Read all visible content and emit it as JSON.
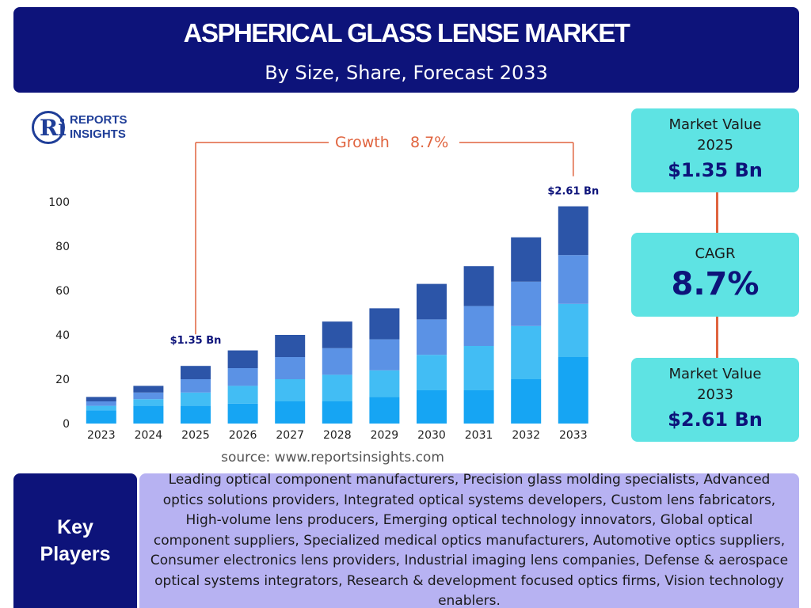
{
  "header": {
    "title": "ASPHERICAL GLASS LENSE MARKET",
    "subtitle": "By Size, Share, Forecast 2033"
  },
  "logo": {
    "line1": "REPORTS",
    "line2": "INSIGHTS",
    "mark": "Ri"
  },
  "chart_data": {
    "type": "bar",
    "stacked": true,
    "categories": [
      "2023",
      "2024",
      "2025",
      "2026",
      "2027",
      "2028",
      "2029",
      "2030",
      "2031",
      "2032",
      "2033"
    ],
    "series": [
      {
        "values": [
          6,
          8,
          8,
          9,
          10,
          10,
          12,
          15,
          15,
          20,
          30
        ],
        "color": "#16a5f3"
      },
      {
        "values": [
          2,
          3,
          6,
          8,
          10,
          12,
          12,
          16,
          20,
          24,
          24
        ],
        "color": "#42bdf4"
      },
      {
        "values": [
          2,
          3,
          6,
          8,
          10,
          12,
          14,
          16,
          18,
          20,
          22
        ],
        "color": "#5b92e5"
      },
      {
        "values": [
          2,
          3,
          6,
          8,
          10,
          12,
          14,
          16,
          18,
          20,
          22
        ],
        "color": "#2c55a8"
      }
    ],
    "ylim": [
      0,
      100
    ],
    "yticks": [
      0,
      20,
      40,
      60,
      80,
      100
    ],
    "grid": false,
    "annotations": {
      "growth_label": "Growth",
      "growth_value": "8.7%",
      "start_label": "$1.35 Bn",
      "start_category": "2025",
      "end_label": "$2.61 Bn",
      "end_category": "2033",
      "bracket_color": "#e0643f"
    }
  },
  "source": "source: www.reportsinsights.com",
  "cards": {
    "value_2025": {
      "label_line1": "Market Value",
      "label_line2": "2025",
      "value": "$1.35 Bn"
    },
    "cagr": {
      "label": "CAGR",
      "value": "8.7%"
    },
    "value_2033": {
      "label_line1": "Market Value",
      "label_line2": "2033",
      "value": "$2.61 Bn"
    }
  },
  "key_players": {
    "title": "Key Players",
    "text": "Leading optical component manufacturers, Precision glass molding specialists, Advanced optics solutions providers, Integrated optical systems developers, Custom lens fabricators, High-volume lens producers, Emerging optical technology innovators, Global optical component suppliers, Specialized medical optics manufacturers, Automotive optics suppliers, Consumer electronics lens providers, Industrial imaging lens companies, Defense & aerospace optical systems integrators, Research & development focused optics firms, Vision technology enablers."
  },
  "colors": {
    "navy": "#0d137a",
    "cyan": "#5ee3e3",
    "lavender": "#b7b2f2",
    "accent": "#e0643f"
  }
}
